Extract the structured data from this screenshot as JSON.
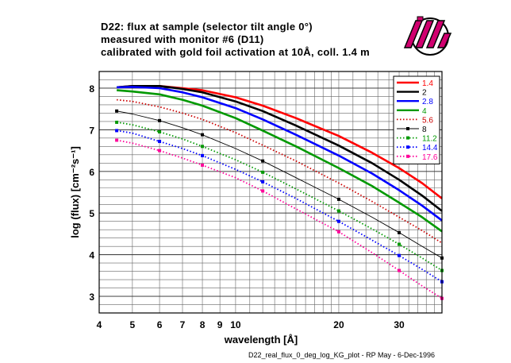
{
  "title_lines": [
    "D22: flux at sample (selector tilt angle 0°)",
    "measured with monitor #6 (D11)",
    "calibrated with gold foil activation at 10Å, coll. 1.4 m"
  ],
  "footer": "D22_real_flux_0_deg_log_KG_plot - RP May - 6-Dec-1996",
  "logo_text": "ill",
  "chart_data": {
    "type": "line",
    "xlabel": "wavelength  [Å]",
    "ylabel": "log (flux) [cm⁻²s⁻¹]",
    "x_scale": "log",
    "xlim": [
      4,
      40
    ],
    "ylim": [
      2.6,
      8.4
    ],
    "grid": true,
    "legend_position": "top-right",
    "x_ticks": [
      4,
      5,
      6,
      7,
      8,
      9,
      10,
      20,
      30
    ],
    "x_tick_labels": [
      "4",
      "5",
      "6",
      "7",
      "8",
      "9",
      "10",
      "20",
      "30"
    ],
    "y_ticks": [
      3,
      4,
      5,
      6,
      7,
      8
    ],
    "y_tick_labels": [
      "3",
      "4",
      "5",
      "6",
      "7",
      "8"
    ],
    "series": [
      {
        "name": "1.4",
        "color": "#ff0000",
        "style": "solid-thick",
        "marker": false,
        "x": [
          4.5,
          5,
          6,
          7,
          8,
          10,
          12,
          15,
          20,
          25,
          30,
          35,
          40
        ],
        "y": [
          8.02,
          8.05,
          8.05,
          8.0,
          7.95,
          7.78,
          7.58,
          7.28,
          6.85,
          6.45,
          6.08,
          5.72,
          5.35
        ]
      },
      {
        "name": "2",
        "color": "#000000",
        "style": "solid-thick",
        "marker": false,
        "x": [
          4.5,
          5,
          6,
          7,
          8,
          10,
          12,
          15,
          20,
          25,
          30,
          35,
          40
        ],
        "y": [
          8.02,
          8.05,
          8.05,
          7.98,
          7.9,
          7.68,
          7.45,
          7.1,
          6.62,
          6.2,
          5.8,
          5.42,
          5.05
        ]
      },
      {
        "name": "2.8",
        "color": "#0000ff",
        "style": "solid-thick",
        "marker": false,
        "x": [
          4.5,
          5,
          6,
          7,
          8,
          10,
          12,
          15,
          20,
          25,
          30,
          35,
          40
        ],
        "y": [
          8.02,
          8.03,
          8.0,
          7.9,
          7.78,
          7.52,
          7.25,
          6.88,
          6.38,
          5.95,
          5.55,
          5.18,
          4.82
        ]
      },
      {
        "name": "4",
        "color": "#009900",
        "style": "solid-thick",
        "marker": false,
        "x": [
          4.5,
          5,
          6,
          7,
          8,
          10,
          12,
          15,
          20,
          25,
          30,
          35,
          40
        ],
        "y": [
          7.95,
          7.92,
          7.85,
          7.72,
          7.58,
          7.28,
          6.98,
          6.6,
          6.08,
          5.65,
          5.25,
          4.9,
          4.56
        ]
      },
      {
        "name": "5.6",
        "color": "#cc0000",
        "style": "dotted",
        "marker": false,
        "x": [
          4.5,
          5,
          6,
          7,
          8,
          10,
          12,
          15,
          20,
          25,
          30,
          35,
          40
        ],
        "y": [
          7.72,
          7.68,
          7.55,
          7.4,
          7.25,
          6.93,
          6.63,
          6.25,
          5.72,
          5.28,
          4.9,
          4.58,
          4.28
        ]
      },
      {
        "name": "8",
        "color": "#000000",
        "style": "solid-thin",
        "marker": true,
        "x": [
          4.5,
          5,
          6,
          7,
          8,
          10,
          12,
          15,
          20,
          25,
          30,
          35,
          40
        ],
        "y": [
          7.45,
          7.38,
          7.22,
          7.05,
          6.88,
          6.55,
          6.25,
          5.85,
          5.33,
          4.9,
          4.53,
          4.2,
          3.92
        ]
      },
      {
        "name": "11.2",
        "color": "#009900",
        "style": "dotted",
        "marker": true,
        "x": [
          4.5,
          5,
          6,
          7,
          8,
          10,
          12,
          15,
          20,
          25,
          30,
          35,
          40
        ],
        "y": [
          7.18,
          7.12,
          6.95,
          6.78,
          6.6,
          6.28,
          5.98,
          5.58,
          5.05,
          4.62,
          4.25,
          3.92,
          3.62
        ]
      },
      {
        "name": "14.4",
        "color": "#0000ff",
        "style": "dotted",
        "marker": true,
        "x": [
          4.5,
          5,
          6,
          7,
          8,
          10,
          12,
          15,
          20,
          25,
          30,
          35,
          40
        ],
        "y": [
          6.98,
          6.92,
          6.72,
          6.55,
          6.38,
          6.05,
          5.75,
          5.35,
          4.8,
          4.35,
          3.98,
          3.65,
          3.35
        ]
      },
      {
        "name": "17.6",
        "color": "#ff0099",
        "style": "dotted",
        "marker": true,
        "x": [
          4.5,
          5,
          6,
          7,
          8,
          10,
          12,
          15,
          20,
          25,
          30,
          35,
          40
        ],
        "y": [
          6.75,
          6.68,
          6.5,
          6.32,
          6.15,
          5.85,
          5.53,
          5.1,
          4.55,
          4.05,
          3.62,
          3.25,
          2.95
        ]
      }
    ]
  }
}
